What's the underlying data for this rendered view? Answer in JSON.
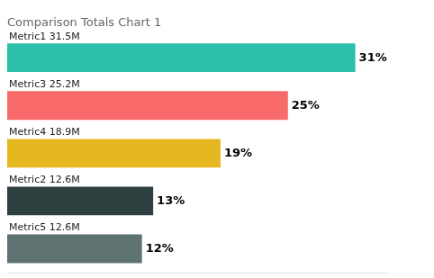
{
  "chart_data": {
    "type": "bar",
    "orientation": "horizontal",
    "title": "Comparison Totals Chart 1",
    "categories": [
      "Metric1 31.5M",
      "Metric3 25.2M",
      "Metric4 18.9M",
      "Metric2 12.6M",
      "Metric5 12.6M"
    ],
    "values": [
      31,
      25,
      19,
      13,
      12
    ],
    "value_labels": [
      "31%",
      "25%",
      "19%",
      "13%",
      "12%"
    ],
    "colors": [
      "#2bbfaa",
      "#f96b6b",
      "#e6b820",
      "#2e3f40",
      "#5f7272"
    ],
    "data_labels": true,
    "xlim": [
      0,
      34
    ],
    "tick_labels": false,
    "grid": false
  }
}
